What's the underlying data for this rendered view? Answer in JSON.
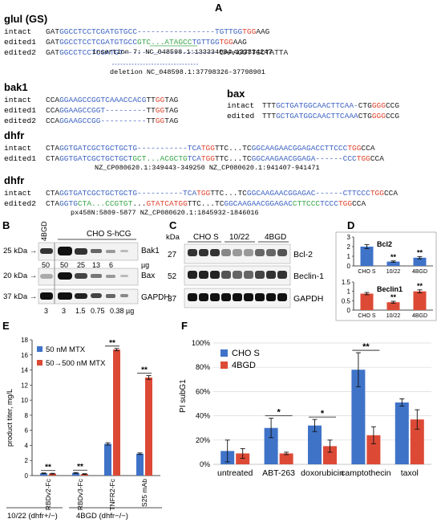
{
  "panels": {
    "A": "A",
    "B": "B",
    "C": "C",
    "D": "D",
    "E": "E",
    "F": "F"
  },
  "colors": {
    "blue": "#3d63c2",
    "red": "#e0442f",
    "green": "#3aa64a",
    "gray": "#555555",
    "bar_blue": "#3f73c8",
    "bar_red": "#dc4a36"
  },
  "panelA": {
    "glul_title": "glul (GS)",
    "glul_rows": [
      {
        "label": "intact",
        "segments": [
          {
            "t": "GAT",
            "c": "k"
          },
          {
            "t": "GGCCTCCTCGATGTGCC",
            "c": "b"
          },
          {
            "t": "-----------------",
            "c": "b"
          },
          {
            "t": "TGTTGG",
            "c": "b"
          },
          {
            "t": "TGG",
            "c": "r"
          },
          {
            "t": "AAG",
            "c": "k"
          }
        ]
      },
      {
        "label": "edited1",
        "segments": [
          {
            "t": "GAT",
            "c": "k"
          },
          {
            "t": "GGCCTCCTCGATGTGCC",
            "c": "b"
          },
          {
            "t": "GTC...ATA",
            "c": "g"
          },
          {
            "t": "GCC",
            "c": "g"
          },
          {
            "t": "TGTTGG",
            "c": "b"
          },
          {
            "t": "TGG",
            "c": "r"
          },
          {
            "t": "AAG",
            "c": "k"
          }
        ]
      },
      {
        "label": "edited2",
        "segments": [
          {
            "t": "GAT",
            "c": "k"
          },
          {
            "t": "GGCCTCCTCGATGT",
            "c": "b"
          },
          {
            "t": "---------------------",
            "c": "b"
          },
          {
            "t": "CAAAGGTTGCTATTA",
            "c": "k"
          }
        ]
      }
    ],
    "glul_note1": "insertion 7: NC_048598.1:133334084-133334247",
    "glul_note2": "deletion NC_048598.1:37798326-37798901",
    "bak1_title": "bak1",
    "bak1_rows": [
      {
        "label": "intact",
        "segments": [
          {
            "t": "CCA",
            "c": "k"
          },
          {
            "t": "GGAAGCCGGTCAAACCACG",
            "c": "b"
          },
          {
            "t": "TT",
            "c": "k"
          },
          {
            "t": "GG",
            "c": "r"
          },
          {
            "t": "TAG",
            "c": "k"
          }
        ]
      },
      {
        "label": "edited1",
        "segments": [
          {
            "t": "CCA",
            "c": "k"
          },
          {
            "t": "GGAAGCCGGT",
            "c": "b"
          },
          {
            "t": "---------",
            "c": "b"
          },
          {
            "t": "TT",
            "c": "k"
          },
          {
            "t": "GG",
            "c": "r"
          },
          {
            "t": "TAG",
            "c": "k"
          }
        ]
      },
      {
        "label": "edited2",
        "segments": [
          {
            "t": "CCA",
            "c": "k"
          },
          {
            "t": "GGAAGCCGG",
            "c": "b"
          },
          {
            "t": "----------",
            "c": "b"
          },
          {
            "t": "TT",
            "c": "k"
          },
          {
            "t": "GG",
            "c": "r"
          },
          {
            "t": "TAG",
            "c": "k"
          }
        ]
      }
    ],
    "bax_title": "bax",
    "bax_rows": [
      {
        "label": "intact",
        "segments": [
          {
            "t": "TTT",
            "c": "k"
          },
          {
            "t": "GCTGATGGCAACTTCAA",
            "c": "b"
          },
          {
            "t": "-",
            "c": "b"
          },
          {
            "t": "CTG",
            "c": "k"
          },
          {
            "t": "GGG",
            "c": "r"
          },
          {
            "t": "CCG",
            "c": "k"
          }
        ]
      },
      {
        "label": "edited",
        "segments": [
          {
            "t": "TTT",
            "c": "k"
          },
          {
            "t": "GCTGATGGCAACTTCAA",
            "c": "b"
          },
          {
            "t": "A",
            "c": "b"
          },
          {
            "t": "CTG",
            "c": "k"
          },
          {
            "t": "GGG",
            "c": "r"
          },
          {
            "t": "CCG",
            "c": "k"
          }
        ]
      }
    ],
    "dhfr1_title": "dhfr",
    "dhfr1_rows": [
      {
        "label": "intact",
        "segments": [
          {
            "t": "CTA",
            "c": "k"
          },
          {
            "t": "GGTGATCGCTGCTGCTG",
            "c": "b"
          },
          {
            "t": "-----------",
            "c": "b"
          },
          {
            "t": "TCA",
            "c": "b"
          },
          {
            "t": "TGG",
            "c": "r"
          },
          {
            "t": "TTC...TC",
            "c": "k"
          },
          {
            "t": "GGCAAGAACGGAGACCTTCCC",
            "c": "b"
          },
          {
            "t": "TGG",
            "c": "r"
          },
          {
            "t": "CCA",
            "c": "k"
          }
        ]
      },
      {
        "label": "edited1",
        "segments": [
          {
            "t": "CTA",
            "c": "k"
          },
          {
            "t": "GGTGATCGCTGC",
            "c": "b"
          },
          {
            "t": "TGCT",
            "c": "b"
          },
          {
            "t": "GCT...ACG",
            "c": "g"
          },
          {
            "t": "CTG",
            "c": "g"
          },
          {
            "t": "TCA",
            "c": "b"
          },
          {
            "t": "TGG",
            "c": "r"
          },
          {
            "t": "TTC...TC",
            "c": "k"
          },
          {
            "t": "GGCAAGAACGGAGA",
            "c": "b"
          },
          {
            "t": "------",
            "c": "b"
          },
          {
            "t": "CCC",
            "c": "b"
          },
          {
            "t": "TGG",
            "c": "r"
          },
          {
            "t": "CCA",
            "c": "k"
          }
        ]
      }
    ],
    "dhfr1_note": "NZ_CP080620.1:349443-349250   NZ_CP080620.1:941407-941471",
    "dhfr2_title": "dhfr",
    "dhfr2_rows": [
      {
        "label": "intact",
        "segments": [
          {
            "t": "CTA",
            "c": "k"
          },
          {
            "t": "GGTGATCGCTGCTGCTG",
            "c": "b"
          },
          {
            "t": "----------",
            "c": "b"
          },
          {
            "t": "TCA",
            "c": "b"
          },
          {
            "t": "TGG",
            "c": "r"
          },
          {
            "t": "TTC...TC",
            "c": "k"
          },
          {
            "t": "GGCAAGAACGGAGAC",
            "c": "b"
          },
          {
            "t": "------",
            "c": "b"
          },
          {
            "t": "CTTCCC",
            "c": "b"
          },
          {
            "t": "TGG",
            "c": "r"
          },
          {
            "t": "CCA",
            "c": "k"
          }
        ]
      },
      {
        "label": "edited2",
        "segments": [
          {
            "t": "CTA",
            "c": "k"
          },
          {
            "t": "GGTG",
            "c": "b"
          },
          {
            "t": "CTA...CCGTGT",
            "c": "g"
          },
          {
            "t": "...",
            "c": "k"
          },
          {
            "t": "GTATCA",
            "c": "r"
          },
          {
            "t": "TGG",
            "c": "r"
          },
          {
            "t": "TTC...TC",
            "c": "k"
          },
          {
            "t": "GGCAAGAACGGAGAC",
            "c": "b"
          },
          {
            "t": "CTTCCC",
            "c": "g"
          },
          {
            "t": "TCCC",
            "c": "b"
          },
          {
            "t": "TGG",
            "c": "r"
          },
          {
            "t": "CCA",
            "c": "k"
          }
        ]
      }
    ],
    "dhfr2_note": "px458N:5809-5877     NZ_CP080620.1:1845932-1846016"
  },
  "panelB": {
    "top_header": "CHO S-hCG",
    "side_header": "4BGD",
    "kda_labels": [
      "25 kDa →",
      "20 kDa →",
      "37 kDa →"
    ],
    "band_labels": [
      "Bak1",
      "Bax",
      "GAPDH"
    ],
    "amounts": [
      "50",
      "50",
      "25",
      "13",
      "6"
    ],
    "amount_unit": "µg",
    "gapdh_amounts": [
      "3",
      "3",
      "1.5",
      "0.75",
      "0.38 µg"
    ]
  },
  "panelC": {
    "kda": "kDa",
    "groups": [
      "CHO S",
      "10/22",
      "4BGD"
    ],
    "mw": [
      "27",
      "52",
      "37"
    ],
    "bands": [
      "Bcl-2",
      "Beclin-1",
      "GAPDH"
    ]
  },
  "panelD": {
    "chart_data": [
      {
        "type": "bar",
        "title": "Bcl2",
        "categories": [
          "CHO S",
          "10/22",
          "4BGD"
        ],
        "values": [
          2.0,
          0.45,
          0.85
        ],
        "errors": [
          0.2,
          0.07,
          0.12
        ],
        "ylim": [
          0,
          3
        ],
        "yticks": [
          "0",
          "1",
          "2",
          "3"
        ],
        "significance": [
          "",
          "**",
          "**"
        ],
        "color": "#3f73c8"
      },
      {
        "type": "bar",
        "title": "Beclin1",
        "categories": [
          "CHO S",
          "10/22",
          "4BGD"
        ],
        "values": [
          0.88,
          0.42,
          1.0
        ],
        "errors": [
          0.06,
          0.05,
          0.08
        ],
        "ylim": [
          0,
          1.5
        ],
        "yticks": [
          "0",
          "0.5",
          "1",
          "1.5"
        ],
        "significance": [
          "",
          "**",
          "**"
        ],
        "color": "#dc4a36"
      }
    ]
  },
  "panelE": {
    "chart_data": {
      "type": "bar",
      "ylabel": "product titer, mg/L",
      "ylim": [
        0,
        18
      ],
      "yticks": [
        "0",
        "2",
        "4",
        "6",
        "8",
        "10",
        "12",
        "14",
        "16",
        "18"
      ],
      "categories": [
        "RBDv2-Fc",
        "RBDv3-Fc",
        "TNFR2-Fc",
        "S25 mAb"
      ],
      "series": [
        {
          "name": "50 nM MTX",
          "values": [
            0.3,
            0.35,
            4.2,
            2.9
          ],
          "errors": [
            0.05,
            0.05,
            0.15,
            0.1
          ],
          "color": "#3f73c8"
        },
        {
          "name": "50→500 nM MTX",
          "values": [
            0.25,
            0.2,
            16.7,
            13.0
          ],
          "errors": [
            0.05,
            0.05,
            0.15,
            0.25
          ],
          "color": "#dc4a36"
        }
      ],
      "significance": [
        "**",
        "**",
        "**",
        "**"
      ],
      "group_labels": [
        "10/22 (dhfr+/−)",
        "4BGD (dhfr−/−)"
      ],
      "legend_position": "top-left"
    }
  },
  "panelF": {
    "chart_data": {
      "type": "bar",
      "ylabel": "PI subG1",
      "ylim": [
        0,
        100
      ],
      "yticks": [
        "0%",
        "20%",
        "40%",
        "60%",
        "80%",
        "100%"
      ],
      "categories": [
        "untreated",
        "ABT-263",
        "doxorubicin",
        "camptothecin",
        "taxol"
      ],
      "series": [
        {
          "name": "CHO S",
          "values": [
            11,
            30,
            32,
            78,
            51
          ],
          "errors": [
            9,
            8,
            5,
            14,
            3
          ],
          "color": "#3f73c8"
        },
        {
          "name": "4BGD",
          "values": [
            9,
            9,
            15,
            24,
            37
          ],
          "errors": [
            4,
            1,
            5,
            7,
            8
          ],
          "color": "#dc4a36"
        }
      ],
      "significance": [
        "",
        "*",
        "*",
        "**",
        ""
      ],
      "legend_position": "top-left"
    }
  }
}
